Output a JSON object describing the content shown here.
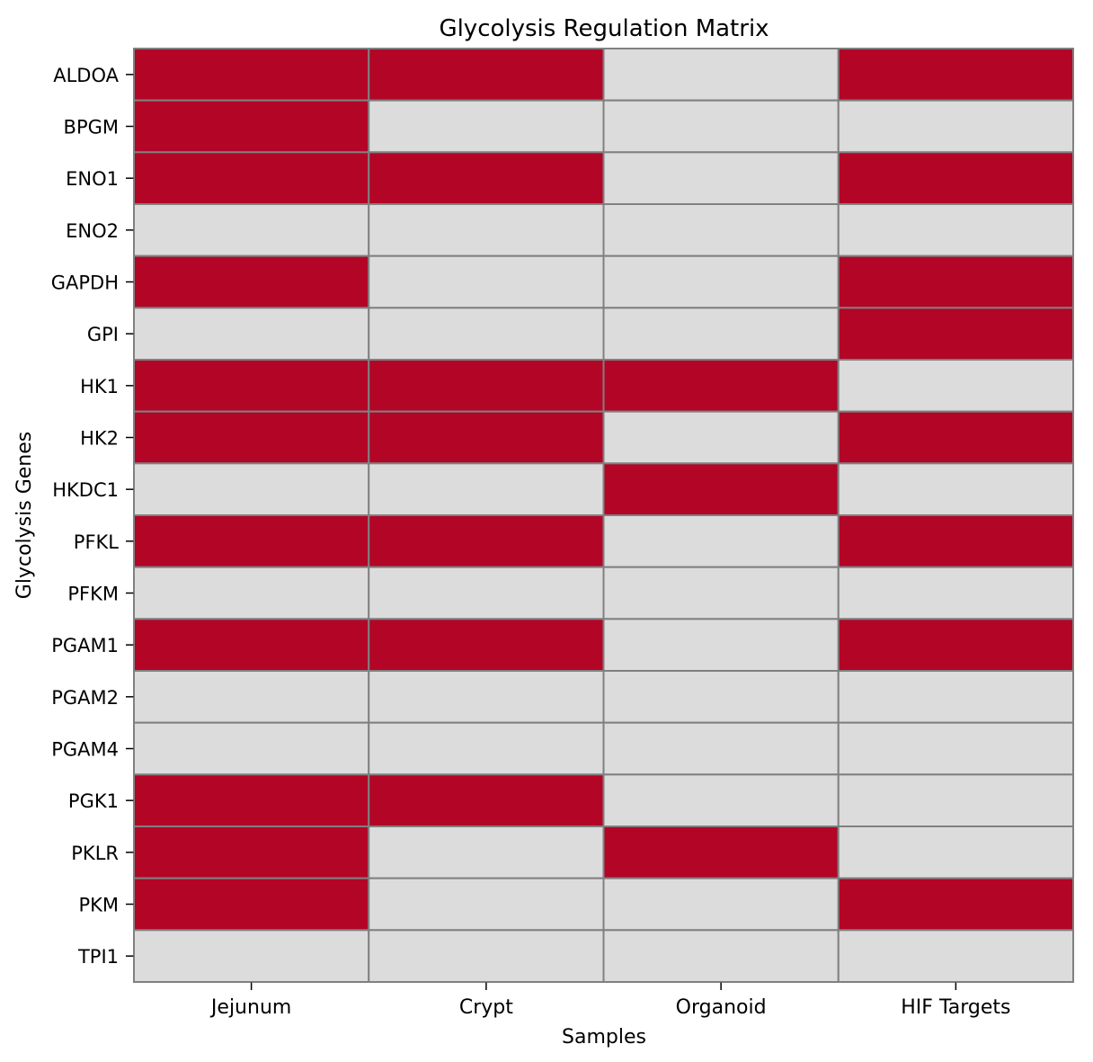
{
  "chart_data": {
    "type": "heatmap",
    "title": "Glycolysis Regulation Matrix",
    "xlabel": "Samples",
    "ylabel": "Glycolysis Genes",
    "columns": [
      "Jejunum",
      "Crypt",
      "Organoid",
      "HIF Targets"
    ],
    "rows": [
      "ALDOA",
      "BPGM",
      "ENO1",
      "ENO2",
      "GAPDH",
      "GPI",
      "HK1",
      "HK2",
      "HKDC1",
      "PFKL",
      "PFKM",
      "PGAM1",
      "PGAM2",
      "PGAM4",
      "PGK1",
      "PKLR",
      "PKM",
      "TPI1"
    ],
    "values": [
      [
        1,
        1,
        0,
        1
      ],
      [
        1,
        0,
        0,
        0
      ],
      [
        1,
        1,
        0,
        1
      ],
      [
        0,
        0,
        0,
        0
      ],
      [
        1,
        0,
        0,
        1
      ],
      [
        0,
        0,
        0,
        1
      ],
      [
        1,
        1,
        1,
        0
      ],
      [
        1,
        1,
        0,
        1
      ],
      [
        0,
        0,
        1,
        0
      ],
      [
        1,
        1,
        0,
        1
      ],
      [
        0,
        0,
        0,
        0
      ],
      [
        1,
        1,
        0,
        1
      ],
      [
        0,
        0,
        0,
        0
      ],
      [
        0,
        0,
        0,
        0
      ],
      [
        1,
        1,
        0,
        0
      ],
      [
        1,
        0,
        1,
        0
      ],
      [
        1,
        0,
        0,
        1
      ],
      [
        0,
        0,
        0,
        0
      ]
    ],
    "colors": {
      "on": "#b30526",
      "off": "#dcdcdc",
      "cell_border": "#808080"
    },
    "grid": false,
    "legend": "none"
  }
}
